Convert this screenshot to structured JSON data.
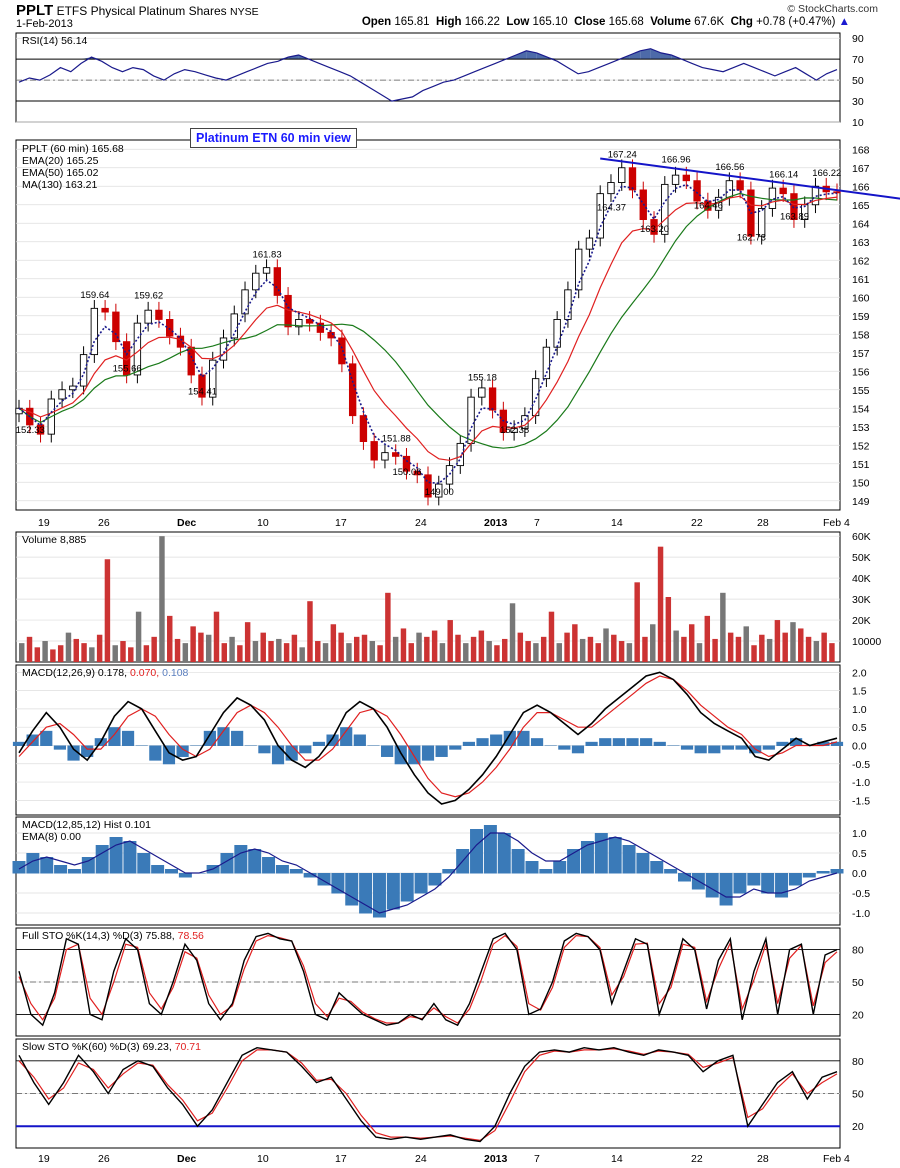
{
  "header": {
    "symbol": "PPLT",
    "name": "ETFS Physical Platinum Shares",
    "exchange": "NYSE",
    "date": "1-Feb-2013",
    "credit": "© StockCharts.com",
    "quote": {
      "open_label": "Open",
      "open": "165.81",
      "high_label": "High",
      "high": "166.22",
      "low_label": "Low",
      "low": "165.10",
      "close_label": "Close",
      "close": "165.68",
      "volume_label": "Volume",
      "volume": "67.6K",
      "chg_label": "Chg",
      "chg": "+0.78 (+0.47%)"
    }
  },
  "annotation": "Platinum ETN 60 min view",
  "colors": {
    "price_up": "#000000",
    "price_down": "#cc0000",
    "ema20": "#1a1a8c",
    "ema50": "#e02020",
    "ma130": "#1a7a1a",
    "rsi_fill": "#3a5aa0",
    "hist": "#3a7ab8",
    "vol_up": "#777777",
    "vol_down": "#cc3333",
    "trend": "#1414c8"
  },
  "chart_data": [
    {
      "type": "line",
      "panel": "rsi",
      "legend": "RSI(14) 56.14",
      "ylim": [
        10,
        95
      ],
      "yticks": [
        10,
        30,
        50,
        70,
        90
      ],
      "reference_lines": [
        30,
        50,
        70
      ],
      "values": [
        48,
        52,
        50,
        55,
        62,
        58,
        66,
        72,
        68,
        62,
        58,
        62,
        60,
        54,
        50,
        56,
        60,
        58,
        55,
        52,
        50,
        54,
        58,
        62,
        66,
        68,
        72,
        74,
        70,
        66,
        62,
        58,
        54,
        48,
        42,
        36,
        30,
        32,
        34,
        40,
        44,
        48,
        50,
        54,
        58,
        62,
        66,
        70,
        74,
        78,
        76,
        72,
        68,
        62,
        56,
        58,
        62,
        66,
        70,
        74,
        78,
        80,
        76,
        74,
        70,
        66,
        62,
        60,
        58,
        62,
        66,
        62,
        58,
        54,
        58,
        62,
        56,
        50,
        56,
        60
      ]
    },
    {
      "type": "candlestick",
      "panel": "price",
      "legend": [
        "PPLT (60 min) 165.68",
        "EMA(20) 165.25",
        "EMA(50) 165.02",
        "MA(130) 163.21"
      ],
      "ylim": [
        148.5,
        168.5
      ],
      "yticks": [
        149,
        150,
        151,
        152,
        153,
        154,
        155,
        156,
        157,
        158,
        159,
        160,
        161,
        162,
        163,
        164,
        165,
        166,
        167,
        168
      ],
      "xticks": [
        "19",
        "26",
        "Dec",
        "10",
        "17",
        "24",
        "2013",
        "7",
        "14",
        "22",
        "28",
        "Feb 4"
      ],
      "close": [
        154.0,
        153.1,
        152.6,
        154.5,
        155.0,
        155.2,
        156.9,
        159.4,
        159.2,
        157.6,
        155.8,
        158.6,
        159.3,
        158.8,
        157.9,
        157.3,
        155.8,
        154.6,
        156.6,
        157.8,
        159.1,
        160.4,
        161.3,
        161.6,
        160.1,
        158.4,
        158.8,
        158.6,
        158.1,
        157.8,
        156.4,
        153.6,
        152.2,
        151.2,
        151.6,
        151.4,
        150.6,
        150.4,
        149.2,
        149.9,
        150.9,
        152.1,
        154.6,
        155.1,
        153.9,
        152.7,
        152.9,
        153.6,
        155.6,
        157.3,
        158.8,
        160.4,
        162.6,
        163.2,
        165.6,
        166.2,
        167.0,
        165.8,
        164.2,
        163.4,
        166.1,
        166.6,
        166.3,
        165.2,
        164.7,
        165.4,
        166.3,
        165.8,
        163.3,
        164.8,
        165.9,
        165.6,
        164.2,
        165.0,
        166.0,
        165.7,
        165.68
      ],
      "labels": [
        {
          "x": 1,
          "y": 152.33,
          "text": "152.33"
        },
        {
          "x": 7,
          "y": 159.64,
          "text": "159.64"
        },
        {
          "x": 10,
          "y": 155.66,
          "text": "155.66"
        },
        {
          "x": 12,
          "y": 159.62,
          "text": "159.62"
        },
        {
          "x": 17,
          "y": 154.41,
          "text": "154.41"
        },
        {
          "x": 23,
          "y": 161.83,
          "text": "161.83"
        },
        {
          "x": 36,
          "y": 150.06,
          "text": "150.06"
        },
        {
          "x": 35,
          "y": 151.88,
          "text": "151.88"
        },
        {
          "x": 39,
          "y": 149.0,
          "text": "149.00"
        },
        {
          "x": 43,
          "y": 155.18,
          "text": "155.18"
        },
        {
          "x": 46,
          "y": 152.35,
          "text": "152.35"
        },
        {
          "x": 55,
          "y": 164.37,
          "text": "164.37"
        },
        {
          "x": 56,
          "y": 167.24,
          "text": "167.24"
        },
        {
          "x": 59,
          "y": 163.2,
          "text": "163.20"
        },
        {
          "x": 61,
          "y": 166.96,
          "text": "166.96"
        },
        {
          "x": 64,
          "y": 164.46,
          "text": "164.46"
        },
        {
          "x": 66,
          "y": 166.56,
          "text": "166.56"
        },
        {
          "x": 68,
          "y": 162.73,
          "text": "162.73"
        },
        {
          "x": 71,
          "y": 166.14,
          "text": "166.14"
        },
        {
          "x": 72,
          "y": 163.89,
          "text": "163.89"
        },
        {
          "x": 75,
          "y": 166.22,
          "text": "166.22"
        }
      ],
      "trendline": [
        {
          "x": 54,
          "y": 167.5
        },
        {
          "x": 78,
          "y": 165.8
        }
      ]
    },
    {
      "type": "bar",
      "panel": "volume",
      "legend": "Volume 8,885",
      "ylim": [
        0,
        62000
      ],
      "yticks": [
        {
          "v": 10000,
          "t": "10000"
        },
        {
          "v": 20000,
          "t": "20K"
        },
        {
          "v": 30000,
          "t": "30K"
        },
        {
          "v": 40000,
          "t": "40K"
        },
        {
          "v": 50000,
          "t": "50K"
        },
        {
          "v": 60000,
          "t": "60K"
        }
      ],
      "values": [
        9,
        12,
        7,
        10,
        6,
        8,
        14,
        11,
        9,
        7,
        13,
        49,
        8,
        10,
        7,
        24,
        8,
        12,
        60,
        22,
        11,
        9,
        17,
        14,
        13,
        24,
        9,
        12,
        8,
        19,
        10,
        14,
        10,
        11,
        9,
        13,
        7,
        29,
        10,
        9,
        18,
        14,
        9,
        12,
        13,
        10,
        8,
        33,
        12,
        16,
        9,
        14,
        12,
        15,
        9,
        20,
        13,
        9,
        12,
        15,
        10,
        8,
        11,
        28,
        14,
        10,
        9,
        12,
        24,
        9,
        14,
        18,
        11,
        12,
        9,
        16,
        13,
        10,
        9,
        38,
        12,
        18,
        55,
        31,
        15,
        12,
        18,
        9,
        22,
        11,
        33,
        14,
        12,
        17,
        8,
        13,
        11,
        20,
        14,
        19,
        16,
        12,
        10,
        14,
        9
      ]
    },
    {
      "type": "line",
      "panel": "macd1",
      "legend": [
        "MACD(12,26,9) 0.178,",
        "0.070,",
        "0.108"
      ],
      "ylim": [
        -1.9,
        2.2
      ],
      "yticks": [
        -1.5,
        -1.0,
        -0.5,
        0.0,
        0.5,
        1.0,
        1.5,
        2.0
      ],
      "macd": [
        -0.2,
        0.4,
        0.9,
        0.5,
        -0.1,
        -0.4,
        0.1,
        0.8,
        1.2,
        1.0,
        0.4,
        -0.2,
        -0.4,
        -0.3,
        0.3,
        0.9,
        1.3,
        1.1,
        0.7,
        0.0,
        -0.4,
        -0.6,
        -0.3,
        0.2,
        0.9,
        1.2,
        1.0,
        0.5,
        -0.2,
        -0.8,
        -1.3,
        -1.6,
        -1.5,
        -1.2,
        -0.8,
        -0.3,
        0.3,
        0.9,
        1.1,
        0.9,
        0.6,
        0.3,
        0.6,
        1.0,
        1.3,
        1.6,
        1.9,
        2.0,
        1.8,
        1.4,
        0.9,
        0.6,
        0.4,
        0.2,
        -0.3,
        -0.4,
        -0.1,
        0.2,
        0.0,
        0.1,
        0.2
      ],
      "signal": [
        -0.3,
        0.1,
        0.5,
        0.6,
        0.3,
        -0.1,
        -0.1,
        0.3,
        0.8,
        1.0,
        0.8,
        0.3,
        -0.1,
        -0.3,
        -0.1,
        0.4,
        0.9,
        1.1,
        0.9,
        0.5,
        0.0,
        -0.4,
        -0.4,
        -0.1,
        0.4,
        0.9,
        1.0,
        0.8,
        0.3,
        -0.3,
        -0.9,
        -1.3,
        -1.4,
        -1.3,
        -1.0,
        -0.6,
        -0.1,
        0.5,
        0.9,
        0.9,
        0.7,
        0.5,
        0.5,
        0.8,
        1.1,
        1.4,
        1.7,
        1.9,
        1.8,
        1.5,
        1.1,
        0.8,
        0.5,
        0.3,
        -0.1,
        -0.3,
        -0.2,
        0.0,
        0.0,
        0.0,
        0.1
      ]
    },
    {
      "type": "line",
      "panel": "macd2",
      "legend": [
        "MACD(12,85,12) Hist 0.101",
        "EMA(8) 0.00"
      ],
      "ylim": [
        -1.3,
        1.4
      ],
      "yticks": [
        -1.0,
        -0.5,
        0.0,
        0.5,
        1.0
      ],
      "hist": [
        0.3,
        0.5,
        0.4,
        0.2,
        0.1,
        0.4,
        0.7,
        0.9,
        0.8,
        0.5,
        0.2,
        0.1,
        -0.1,
        0.0,
        0.2,
        0.5,
        0.7,
        0.6,
        0.4,
        0.2,
        0.1,
        -0.1,
        -0.3,
        -0.5,
        -0.8,
        -1.0,
        -1.1,
        -0.9,
        -0.7,
        -0.5,
        -0.3,
        0.1,
        0.6,
        1.1,
        1.2,
        1.0,
        0.6,
        0.3,
        0.1,
        0.3,
        0.6,
        0.8,
        1.0,
        0.9,
        0.7,
        0.5,
        0.3,
        0.1,
        -0.2,
        -0.4,
        -0.6,
        -0.8,
        -0.5,
        -0.3,
        -0.5,
        -0.6,
        -0.3,
        -0.1,
        0.05,
        0.1
      ],
      "ema": [
        0.1,
        0.3,
        0.4,
        0.3,
        0.2,
        0.3,
        0.5,
        0.7,
        0.8,
        0.6,
        0.4,
        0.2,
        0.0,
        0.0,
        0.1,
        0.3,
        0.5,
        0.6,
        0.5,
        0.3,
        0.2,
        0.0,
        -0.2,
        -0.4,
        -0.6,
        -0.8,
        -1.0,
        -0.9,
        -0.8,
        -0.6,
        -0.4,
        -0.1,
        0.3,
        0.7,
        1.0,
        1.0,
        0.8,
        0.5,
        0.3,
        0.3,
        0.5,
        0.7,
        0.8,
        0.9,
        0.8,
        0.6,
        0.4,
        0.2,
        0.0,
        -0.2,
        -0.4,
        -0.6,
        -0.6,
        -0.4,
        -0.5,
        -0.5,
        -0.4,
        -0.2,
        -0.1,
        0.0
      ]
    },
    {
      "type": "line",
      "panel": "fullsto",
      "legend": [
        "Full STO %K(14,3) %D(3) 75.88,",
        "78.56"
      ],
      "ylim": [
        0,
        100
      ],
      "yticks": [
        20,
        50,
        80
      ],
      "reference_lines": [
        20,
        50,
        80
      ],
      "k": [
        60,
        20,
        10,
        40,
        90,
        85,
        20,
        15,
        60,
        90,
        80,
        30,
        20,
        50,
        85,
        70,
        30,
        15,
        30,
        70,
        92,
        95,
        90,
        88,
        60,
        20,
        15,
        40,
        30,
        20,
        15,
        10,
        12,
        20,
        15,
        30,
        15,
        10,
        30,
        60,
        90,
        95,
        80,
        20,
        25,
        50,
        88,
        95,
        92,
        80,
        30,
        60,
        90,
        85,
        20,
        50,
        90,
        80,
        25,
        70,
        90,
        15,
        60,
        90,
        20,
        80,
        85,
        20,
        75,
        80
      ],
      "d": [
        55,
        30,
        15,
        35,
        80,
        85,
        35,
        20,
        50,
        85,
        82,
        40,
        25,
        45,
        78,
        72,
        38,
        20,
        28,
        62,
        88,
        93,
        91,
        88,
        65,
        30,
        18,
        35,
        32,
        22,
        16,
        12,
        12,
        18,
        16,
        26,
        18,
        12,
        25,
        52,
        85,
        93,
        83,
        30,
        24,
        45,
        82,
        93,
        92,
        82,
        38,
        55,
        85,
        86,
        30,
        45,
        85,
        82,
        32,
        62,
        86,
        25,
        52,
        85,
        30,
        72,
        84,
        28,
        68,
        78
      ]
    },
    {
      "type": "line",
      "panel": "slowsto",
      "legend": [
        "Slow STO %K(60) %D(3) 69.23,",
        "70.71"
      ],
      "ylim": [
        0,
        100
      ],
      "yticks": [
        20,
        50,
        80
      ],
      "reference_lines": [
        50,
        80
      ],
      "highlight_line": 20,
      "k": [
        85,
        60,
        40,
        60,
        85,
        70,
        50,
        72,
        80,
        75,
        55,
        40,
        20,
        35,
        60,
        85,
        92,
        90,
        88,
        75,
        60,
        65,
        45,
        25,
        10,
        8,
        10,
        8,
        10,
        12,
        8,
        6,
        20,
        50,
        75,
        88,
        90,
        88,
        92,
        90,
        92,
        88,
        85,
        90,
        88,
        85,
        70,
        80,
        85,
        20,
        40,
        60,
        70,
        45,
        65,
        70
      ],
      "d": [
        80,
        65,
        45,
        55,
        78,
        72,
        55,
        68,
        78,
        76,
        58,
        44,
        25,
        32,
        55,
        80,
        90,
        90,
        88,
        78,
        62,
        63,
        50,
        30,
        14,
        10,
        10,
        9,
        10,
        11,
        9,
        7,
        16,
        42,
        70,
        85,
        89,
        88,
        90,
        90,
        91,
        89,
        86,
        89,
        88,
        86,
        74,
        78,
        83,
        28,
        36,
        55,
        68,
        50,
        60,
        68
      ]
    }
  ]
}
